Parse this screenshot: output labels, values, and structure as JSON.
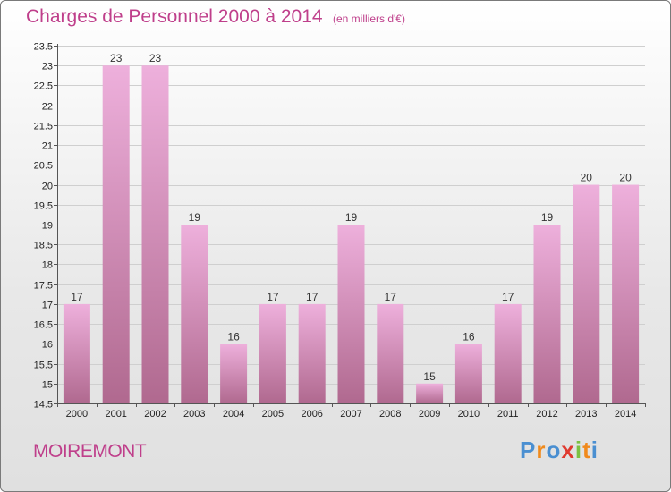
{
  "header": {
    "title": "Charges de Personnel 2000 à 2014",
    "subtitle": "(en milliers d'€)"
  },
  "footer": {
    "commune": "MOIREMONT",
    "logo": "Proxiti"
  },
  "colors": {
    "accent": "#bf3f8b",
    "bar_light": "#eeb0dc",
    "bar_dark": "#b0698f",
    "logo_letters": [
      "#4a8fd1",
      "#f08a1c",
      "#4a8fd1",
      "#e03a2f",
      "#7cc142",
      "#f08a1c",
      "#4a8fd1"
    ]
  },
  "chart_data": {
    "type": "bar",
    "title": "Charges de Personnel 2000 à 2014",
    "subtitle": "(en milliers d'€)",
    "categories": [
      "2000",
      "2001",
      "2002",
      "2003",
      "2004",
      "2005",
      "2006",
      "2007",
      "2008",
      "2009",
      "2010",
      "2011",
      "2012",
      "2013",
      "2014"
    ],
    "values": [
      17,
      23,
      23,
      19,
      16,
      17,
      17,
      19,
      17,
      15,
      16,
      17,
      19,
      20,
      20
    ],
    "value_labels": [
      "17",
      "23",
      "23",
      "19",
      "16",
      "17",
      "17",
      "19",
      "17",
      "15",
      "16",
      "17",
      "19",
      "20",
      "20"
    ],
    "ylim": [
      14.5,
      23.5
    ],
    "yticks": [
      14.5,
      15,
      15.5,
      16,
      16.5,
      17,
      17.5,
      18,
      18.5,
      19,
      19.5,
      20,
      20.5,
      21,
      21.5,
      22,
      22.5,
      23,
      23.5
    ],
    "ytick_labels": [
      "14.5",
      "15",
      "15.5",
      "16",
      "16.5",
      "17",
      "17.5",
      "18",
      "18.5",
      "19",
      "19.5",
      "20",
      "20.5",
      "21",
      "21.5",
      "22",
      "22.5",
      "23",
      "23.5"
    ],
    "grid": true,
    "legend": "none"
  }
}
